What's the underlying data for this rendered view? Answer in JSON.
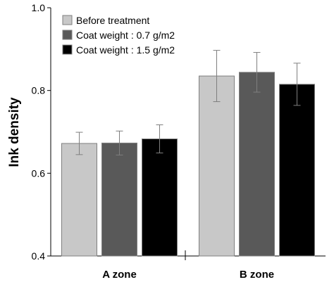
{
  "chart_data": {
    "type": "bar",
    "categories": [
      "A zone",
      "B zone"
    ],
    "series": [
      {
        "name": "Before treatment",
        "values": [
          0.672,
          0.835
        ],
        "errors": [
          0.027,
          0.062
        ],
        "color": "#c8c8c8"
      },
      {
        "name": "Coat weight : 0.7 g/m2",
        "values": [
          0.673,
          0.844
        ],
        "errors": [
          0.029,
          0.048
        ],
        "color": "#595959"
      },
      {
        "name": "Coat weight : 1.5 g/m2",
        "values": [
          0.683,
          0.815
        ],
        "errors": [
          0.034,
          0.051
        ],
        "color": "#000000"
      }
    ],
    "title": "",
    "xlabel": "",
    "ylabel": "Ink density",
    "ylim": [
      0.4,
      1.0
    ],
    "yticks": [
      0.4,
      0.6,
      0.8,
      1.0
    ],
    "ytick_labels": [
      "0.4",
      "0.6",
      "0.8",
      "1.0"
    ],
    "grid": false,
    "legend_position": "top-left"
  }
}
